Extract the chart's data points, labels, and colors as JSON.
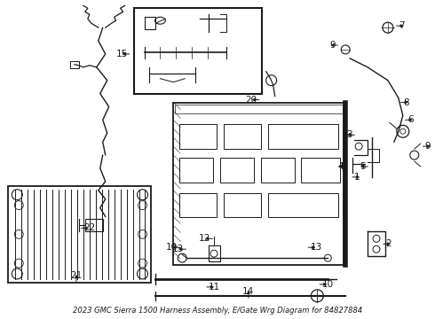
{
  "title": "2023 GMC Sierra 1500 Harness Assembly, E/Gate Wrg Diagram for 84827884",
  "bg_color": "#ffffff",
  "line_color": "#1a1a1a",
  "label_color": "#000000",
  "font_size_label": 7.5,
  "font_size_title": 6.0
}
